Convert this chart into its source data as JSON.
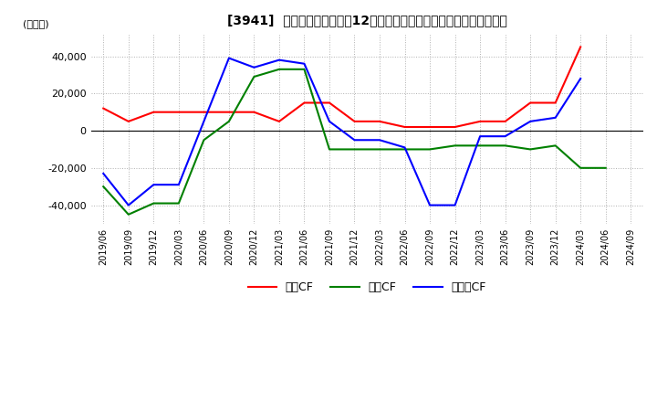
{
  "title": "[3941]  キャッシュフローの12か月移動合計の対前年同期増減額の推移",
  "ylabel": "(百万円)",
  "ylim": [
    -50000,
    52000
  ],
  "yticks": [
    -40000,
    -20000,
    0,
    20000,
    40000
  ],
  "background_color": "#ffffff",
  "grid_color": "#b0b0b0",
  "x_labels": [
    "2019/06",
    "2019/09",
    "2019/12",
    "2020/03",
    "2020/06",
    "2020/09",
    "2020/12",
    "2021/03",
    "2021/06",
    "2021/09",
    "2021/12",
    "2022/03",
    "2022/06",
    "2022/09",
    "2022/12",
    "2023/03",
    "2023/06",
    "2023/09",
    "2023/12",
    "2024/03",
    "2024/06",
    "2024/09"
  ],
  "営業CF": [
    12000,
    5000,
    10000,
    10000,
    10000,
    10000,
    10000,
    5000,
    15000,
    15000,
    5000,
    5000,
    2000,
    2000,
    2000,
    5000,
    5000,
    15000,
    15000,
    45000,
    null,
    null
  ],
  "投資CF": [
    -30000,
    -45000,
    -39000,
    -39000,
    -5000,
    5000,
    29000,
    33000,
    33000,
    -10000,
    -10000,
    -10000,
    -10000,
    -10000,
    -8000,
    -8000,
    -8000,
    -10000,
    -8000,
    -20000,
    -20000,
    null
  ],
  "フリーCF": [
    -23000,
    -40000,
    -29000,
    -29000,
    5000,
    39000,
    34000,
    38000,
    36000,
    5000,
    -5000,
    -5000,
    -9000,
    -40000,
    -40000,
    -3000,
    -3000,
    5000,
    7000,
    28000,
    null,
    null
  ],
  "line_colors": {
    "営業CF": "#ff0000",
    "投資CF": "#008000",
    "フリーCF": "#0000ff"
  }
}
